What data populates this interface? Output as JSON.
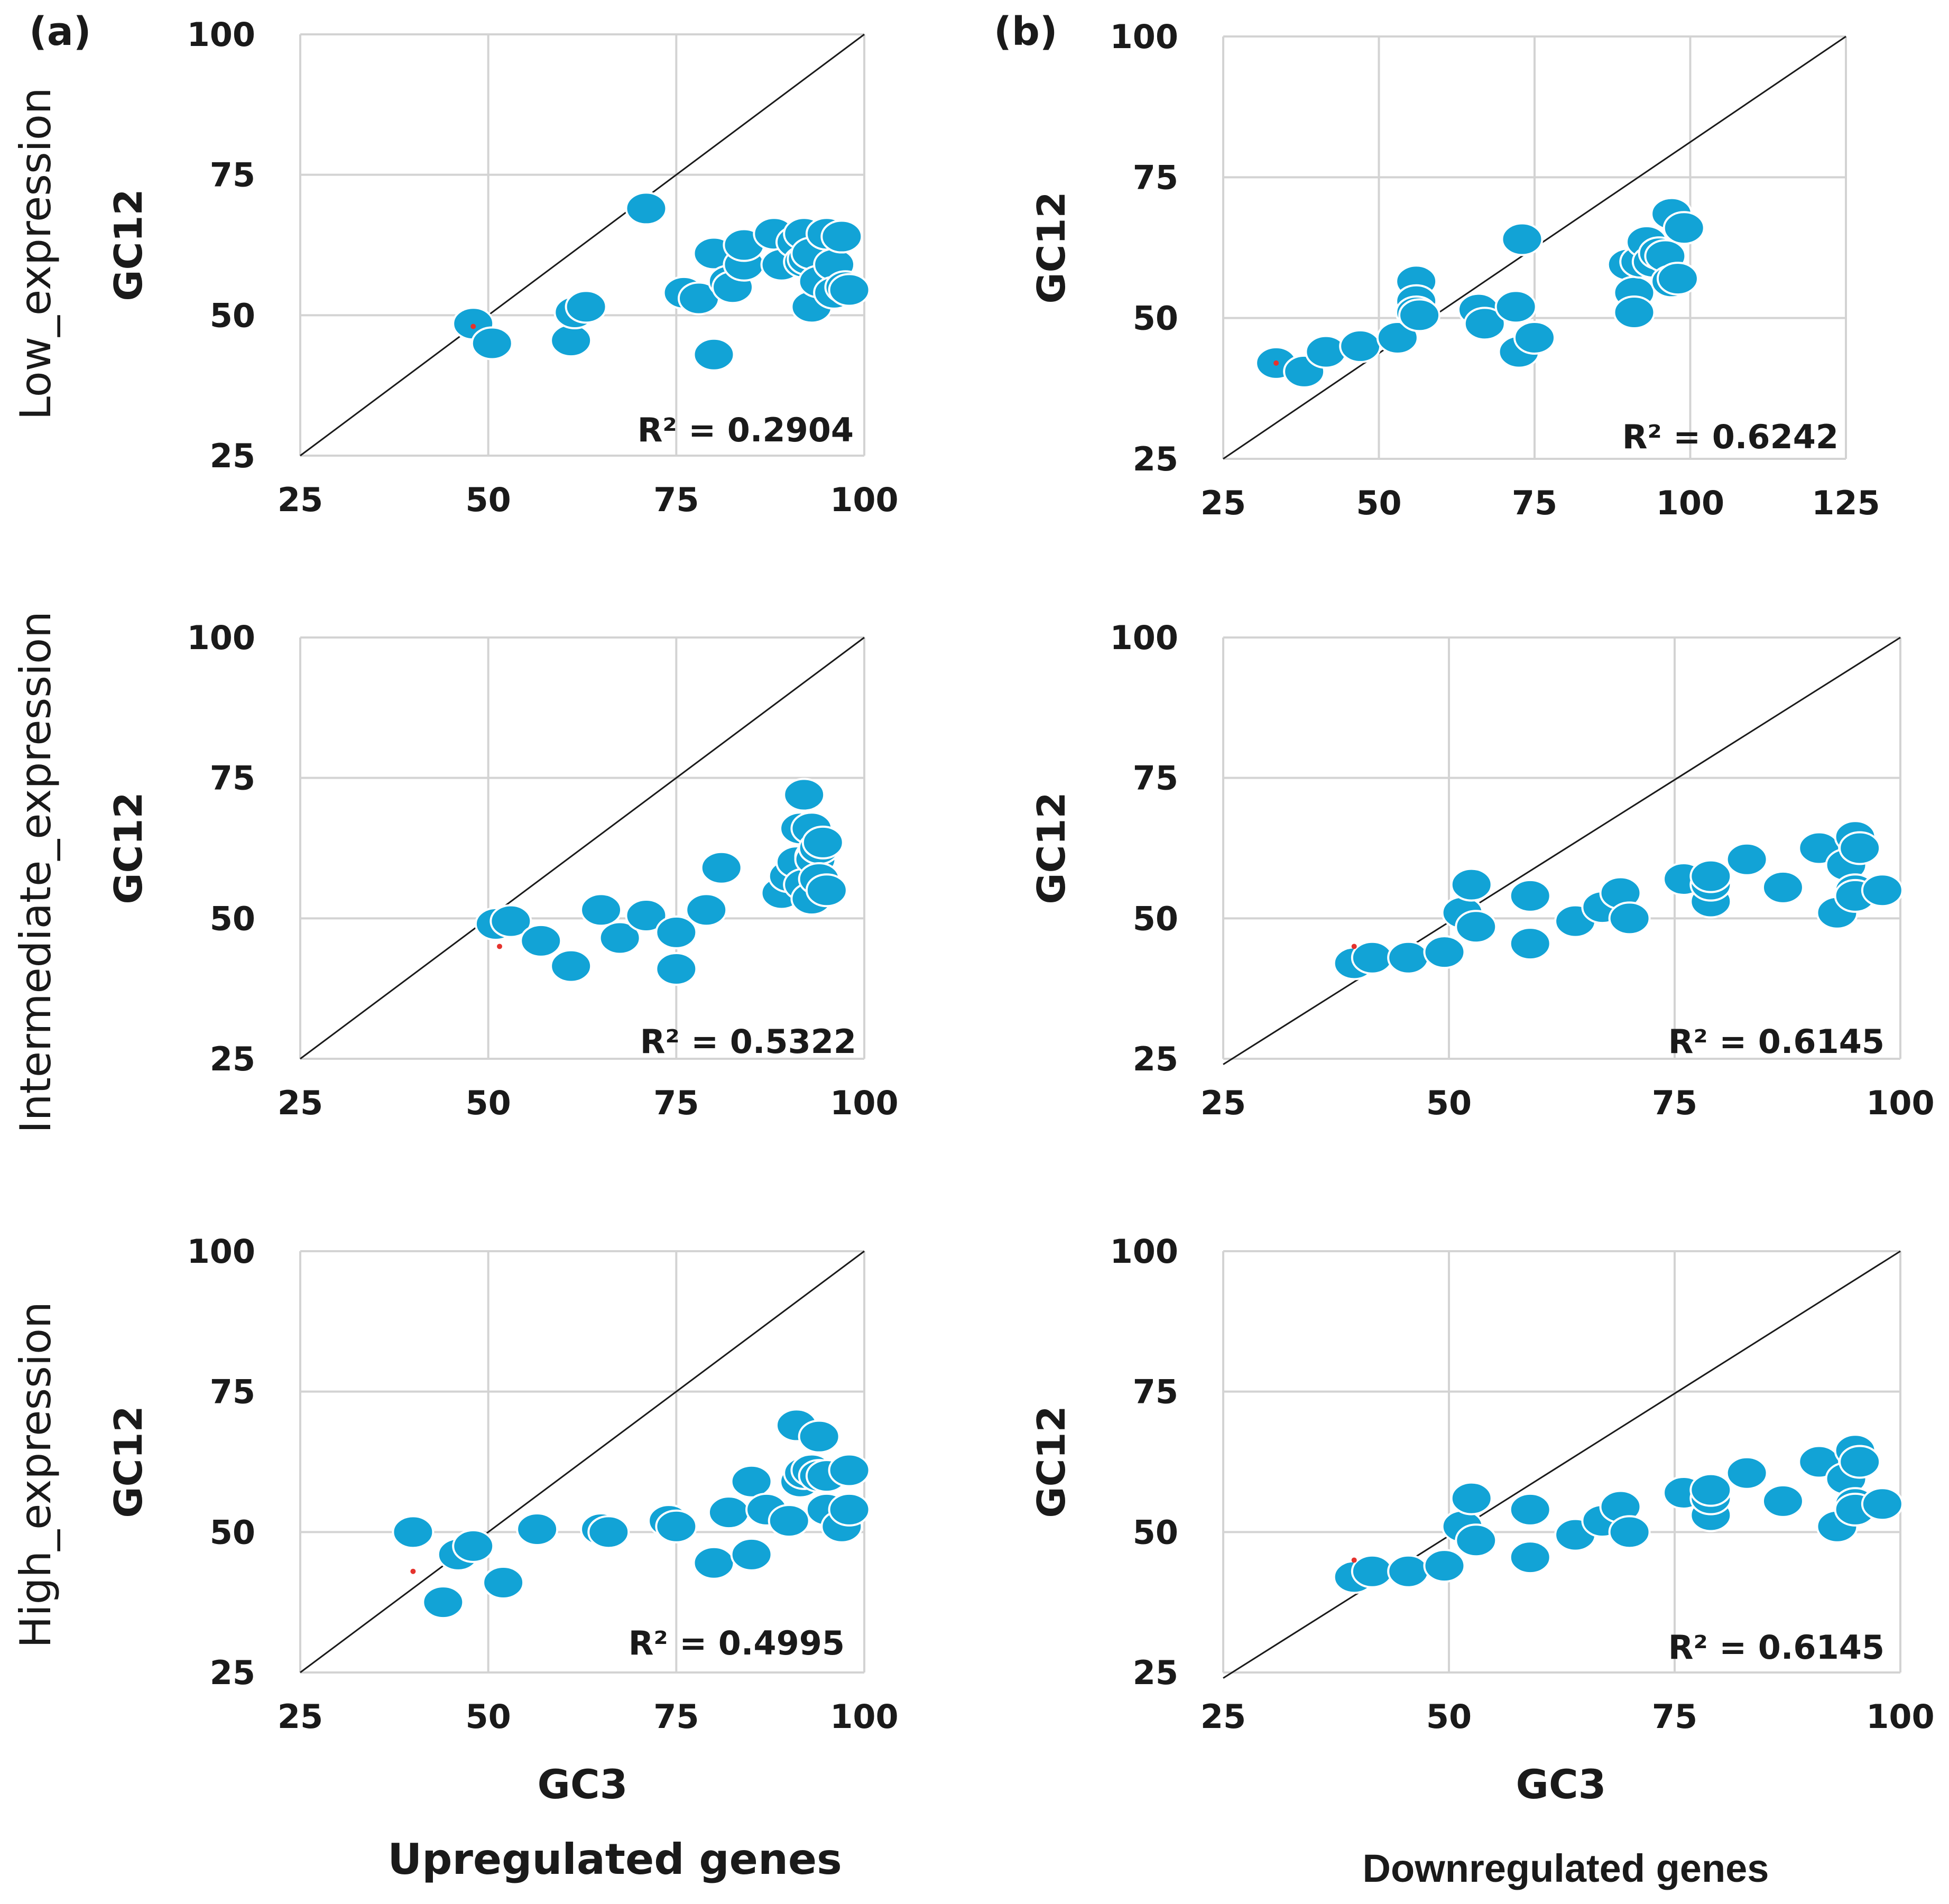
{
  "colors": {
    "point": "#12a3d6",
    "grid": "#d3d3d3",
    "line": "#1a1a1a",
    "outlier": "#e5322d"
  },
  "labels": {
    "panel_a": "(a)",
    "panel_b": "(b)",
    "row_low": "Low_expression",
    "row_intermediate": "Intermediate_expression",
    "row_high": "High_expression",
    "x_axis": "GC3",
    "col_up": "Upregulated genes",
    "col_down": "Downregulated genes"
  },
  "chart_data": [
    {
      "type": "scatter",
      "id": "up-low",
      "xlabel": "GC3",
      "ylabel": "GC12",
      "xlim": [
        25,
        100
      ],
      "ylim": [
        25,
        100
      ],
      "xticks": [
        "25",
        "50",
        "75",
        "100"
      ],
      "yticks": [
        "25",
        "50",
        "75",
        "100"
      ],
      "r2_label": "R² = 0.2904",
      "diag": [
        [
          25,
          25
        ],
        [
          100,
          100
        ]
      ],
      "points": [
        [
          48,
          48.5
        ],
        [
          50.5,
          45
        ],
        [
          61,
          45.5
        ],
        [
          61.5,
          50.5
        ],
        [
          63,
          51.5
        ],
        [
          71,
          69
        ],
        [
          76,
          54
        ],
        [
          78,
          53
        ],
        [
          80,
          43
        ],
        [
          80,
          61
        ],
        [
          82,
          56
        ],
        [
          82.5,
          55
        ],
        [
          84,
          59
        ],
        [
          84,
          62.5
        ],
        [
          88,
          64.5
        ],
        [
          89,
          59
        ],
        [
          91,
          63
        ],
        [
          92,
          64.5
        ],
        [
          92,
          59.5
        ],
        [
          92.5,
          60
        ],
        [
          93,
          61
        ],
        [
          93,
          51.5
        ],
        [
          94,
          56
        ],
        [
          95,
          64.5
        ],
        [
          96,
          59
        ],
        [
          96,
          54
        ],
        [
          97,
          64
        ],
        [
          97.5,
          55
        ],
        [
          98,
          54.5
        ]
      ],
      "outliers": [
        [
          48,
          48
        ]
      ]
    },
    {
      "type": "scatter",
      "id": "down-low",
      "xlabel": "GC3",
      "ylabel": "GC12",
      "xlim": [
        25,
        125
      ],
      "ylim": [
        25,
        100
      ],
      "xticks": [
        "25",
        "50",
        "75",
        "100",
        "125"
      ],
      "yticks": [
        "25",
        "50",
        "75",
        "100"
      ],
      "r2_label": "R² = 0.6242",
      "diag": [
        [
          25,
          25
        ],
        [
          125,
          100
        ]
      ],
      "points": [
        [
          33.5,
          42
        ],
        [
          38,
          40.5
        ],
        [
          41.5,
          44
        ],
        [
          47,
          45
        ],
        [
          53,
          46.5
        ],
        [
          56,
          56.5
        ],
        [
          56,
          53
        ],
        [
          56,
          51
        ],
        [
          56.5,
          50.5
        ],
        [
          66,
          51.5
        ],
        [
          67,
          49
        ],
        [
          72,
          52
        ],
        [
          72.5,
          44
        ],
        [
          73,
          64
        ],
        [
          75,
          46.5
        ],
        [
          90,
          59.5
        ],
        [
          91,
          54.5
        ],
        [
          91,
          51
        ],
        [
          92,
          60
        ],
        [
          93,
          63.5
        ],
        [
          94,
          60
        ],
        [
          95,
          61.5
        ],
        [
          96,
          61
        ],
        [
          97,
          68.5
        ],
        [
          97,
          56.5
        ],
        [
          98,
          57
        ],
        [
          99,
          66
        ]
      ],
      "outliers": [
        [
          33.5,
          42
        ]
      ]
    },
    {
      "type": "scatter",
      "id": "up-intermediate",
      "xlabel": "GC3",
      "ylabel": "GC12",
      "xlim": [
        25,
        100
      ],
      "ylim": [
        25,
        100
      ],
      "xticks": [
        "25",
        "50",
        "75",
        "100"
      ],
      "yticks": [
        "25",
        "50",
        "75",
        "100"
      ],
      "r2_label": "R² = 0.5322",
      "diag": [
        [
          25,
          25
        ],
        [
          100,
          100
        ]
      ],
      "points": [
        [
          51,
          49
        ],
        [
          53,
          49.5
        ],
        [
          57,
          46
        ],
        [
          61,
          41.5
        ],
        [
          65,
          51.5
        ],
        [
          67.5,
          46.5
        ],
        [
          71,
          50.5
        ],
        [
          75,
          47.5
        ],
        [
          75,
          41
        ],
        [
          79,
          51.5
        ],
        [
          81,
          59
        ],
        [
          89,
          54.5
        ],
        [
          90,
          57.5
        ],
        [
          91,
          60
        ],
        [
          91.5,
          66
        ],
        [
          92,
          72
        ],
        [
          92,
          56
        ],
        [
          93,
          66
        ],
        [
          93,
          53.5
        ],
        [
          93.5,
          61
        ],
        [
          93.5,
          60.5
        ],
        [
          94,
          62.5
        ],
        [
          94,
          57
        ],
        [
          94.5,
          63.5
        ],
        [
          95,
          55
        ]
      ],
      "outliers": [
        [
          51.5,
          45
        ]
      ]
    },
    {
      "type": "scatter",
      "id": "down-intermediate",
      "xlabel": "GC3",
      "ylabel": "GC12",
      "xlim": [
        25,
        100
      ],
      "ylim": [
        25,
        100
      ],
      "xticks": [
        "25",
        "50",
        "75",
        "100"
      ],
      "yticks": [
        "25",
        "50",
        "75",
        "100"
      ],
      "r2_label": "R² = 0.6145",
      "diag": [
        [
          25,
          24
        ],
        [
          100,
          100
        ]
      ],
      "points": [
        [
          39.5,
          42
        ],
        [
          41.5,
          43
        ],
        [
          45.5,
          43
        ],
        [
          49.5,
          44
        ],
        [
          51.5,
          51
        ],
        [
          52.5,
          56
        ],
        [
          53,
          48.5
        ],
        [
          59,
          54
        ],
        [
          59,
          45.5
        ],
        [
          64,
          49.5
        ],
        [
          67,
          52
        ],
        [
          69,
          54.5
        ],
        [
          70,
          50
        ],
        [
          76,
          57
        ],
        [
          79,
          53
        ],
        [
          79,
          56
        ],
        [
          79,
          57.5
        ],
        [
          83,
          60.5
        ],
        [
          87,
          55.5
        ],
        [
          91,
          62.5
        ],
        [
          93,
          51
        ],
        [
          94,
          59.5
        ],
        [
          95,
          55
        ],
        [
          95,
          64.5
        ],
        [
          95,
          54
        ],
        [
          95.5,
          62.5
        ],
        [
          98,
          55
        ]
      ],
      "outliers": [
        [
          39.5,
          45
        ]
      ]
    },
    {
      "type": "scatter",
      "id": "up-high",
      "xlabel": "GC3",
      "ylabel": "GC12",
      "xlim": [
        25,
        100
      ],
      "ylim": [
        25,
        100
      ],
      "xticks": [
        "25",
        "50",
        "75",
        "100"
      ],
      "yticks": [
        "25",
        "50",
        "75",
        "100"
      ],
      "r2_label": "R² = 0.4995",
      "diag": [
        [
          25,
          25
        ],
        [
          100,
          100
        ]
      ],
      "points": [
        [
          40,
          50
        ],
        [
          44,
          37.5
        ],
        [
          46,
          46
        ],
        [
          48,
          47.5
        ],
        [
          52,
          41
        ],
        [
          56.5,
          50.5
        ],
        [
          65,
          50.5
        ],
        [
          66,
          50
        ],
        [
          74,
          52
        ],
        [
          75,
          51
        ],
        [
          80,
          44.5
        ],
        [
          82,
          53.5
        ],
        [
          85,
          59
        ],
        [
          85,
          46
        ],
        [
          87,
          54
        ],
        [
          90,
          52
        ],
        [
          91,
          69
        ],
        [
          91.5,
          59
        ],
        [
          92,
          60.5
        ],
        [
          93,
          61
        ],
        [
          94,
          67
        ],
        [
          94,
          60
        ],
        [
          95,
          60
        ],
        [
          95,
          54
        ],
        [
          97,
          51
        ],
        [
          98,
          61
        ],
        [
          98,
          54
        ]
      ],
      "outliers": [
        [
          40,
          43
        ]
      ]
    },
    {
      "type": "scatter",
      "id": "down-high",
      "xlabel": "GC3",
      "ylabel": "GC12",
      "xlim": [
        25,
        100
      ],
      "ylim": [
        25,
        100
      ],
      "xticks": [
        "25",
        "50",
        "75",
        "100"
      ],
      "yticks": [
        "25",
        "50",
        "75",
        "100"
      ],
      "r2_label": "R² = 0.6145",
      "diag": [
        [
          25,
          24
        ],
        [
          100,
          100
        ]
      ],
      "points": [
        [
          39.5,
          42
        ],
        [
          41.5,
          43
        ],
        [
          45.5,
          43
        ],
        [
          49.5,
          44
        ],
        [
          51.5,
          51
        ],
        [
          52.5,
          56
        ],
        [
          53,
          48.5
        ],
        [
          59,
          54
        ],
        [
          59,
          45.5
        ],
        [
          64,
          49.5
        ],
        [
          67,
          52
        ],
        [
          69,
          54.5
        ],
        [
          70,
          50
        ],
        [
          76,
          57
        ],
        [
          79,
          53
        ],
        [
          79,
          56
        ],
        [
          79,
          57.5
        ],
        [
          83,
          60.5
        ],
        [
          87,
          55.5
        ],
        [
          91,
          62.5
        ],
        [
          93,
          51
        ],
        [
          94,
          59.5
        ],
        [
          95,
          55
        ],
        [
          95,
          64.5
        ],
        [
          95,
          54
        ],
        [
          95.5,
          62.5
        ],
        [
          98,
          55
        ]
      ],
      "outliers": [
        [
          39.5,
          45
        ]
      ]
    }
  ]
}
